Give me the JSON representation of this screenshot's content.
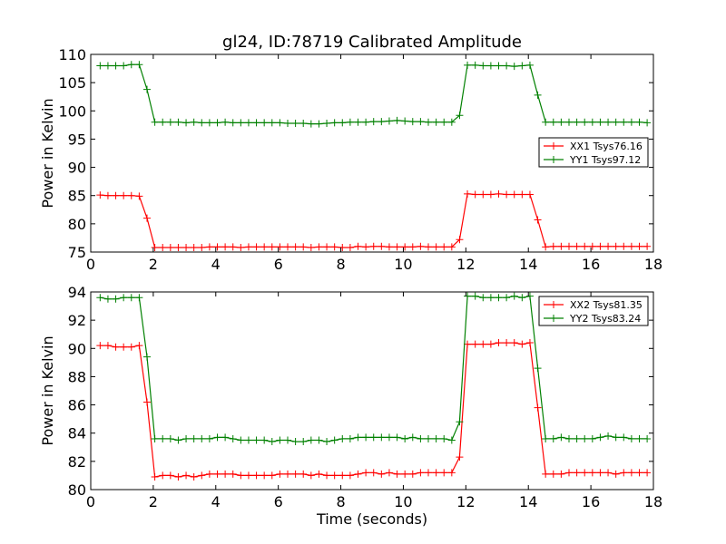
{
  "title": "gl24, ID:78719 Calibrated Amplitude",
  "chart_data": [
    {
      "type": "line",
      "xlabel": "",
      "ylabel": "Power in Kelvin",
      "xlim": [
        0,
        18
      ],
      "ylim": [
        75,
        110
      ],
      "xticks": [
        "0",
        "2",
        "4",
        "6",
        "8",
        "10",
        "12",
        "14",
        "16",
        "18"
      ],
      "yticks": [
        "75",
        "80",
        "85",
        "90",
        "95",
        "100",
        "105",
        "110"
      ],
      "legend_position": "center-right",
      "series": [
        {
          "name": "XX1 Tsys76.16",
          "color": "#ff0000",
          "x": [
            0.3,
            0.55,
            0.8,
            1.05,
            1.3,
            1.55,
            1.8,
            2.05,
            2.3,
            2.55,
            2.8,
            3.05,
            3.3,
            3.55,
            3.8,
            4.05,
            4.3,
            4.55,
            4.8,
            5.05,
            5.3,
            5.55,
            5.8,
            6.05,
            6.3,
            6.55,
            6.8,
            7.05,
            7.3,
            7.55,
            7.8,
            8.05,
            8.3,
            8.55,
            8.8,
            9.05,
            9.3,
            9.55,
            9.8,
            10.05,
            10.3,
            10.55,
            10.8,
            11.05,
            11.3,
            11.55,
            11.8,
            12.05,
            12.3,
            12.55,
            12.8,
            13.05,
            13.3,
            13.55,
            13.8,
            14.05,
            14.3,
            14.55,
            14.8,
            15.05,
            15.3,
            15.55,
            15.8,
            16.05,
            16.3,
            16.55,
            16.8,
            17.05,
            17.3,
            17.55,
            17.8
          ],
          "values": [
            85.1,
            85.0,
            85.0,
            85.0,
            85.0,
            84.9,
            81.0,
            75.8,
            75.8,
            75.8,
            75.8,
            75.8,
            75.8,
            75.8,
            75.9,
            75.9,
            75.9,
            75.9,
            75.8,
            75.9,
            75.9,
            75.9,
            75.9,
            75.9,
            75.9,
            75.9,
            75.9,
            75.8,
            75.9,
            75.9,
            75.9,
            75.8,
            75.8,
            76.0,
            75.9,
            76.0,
            76.0,
            75.9,
            75.9,
            75.9,
            75.9,
            76.0,
            75.9,
            75.9,
            75.9,
            75.9,
            77.2,
            85.3,
            85.2,
            85.2,
            85.2,
            85.3,
            85.2,
            85.2,
            85.2,
            85.2,
            80.7,
            75.9,
            76.0,
            76.0,
            76.0,
            76.0,
            76.0,
            76.0,
            76.0,
            76.0,
            76.0,
            76.0,
            76.0,
            76.0,
            76.0
          ]
        },
        {
          "name": "YY1 Tsys97.12",
          "color": "#008000",
          "x": [
            0.3,
            0.55,
            0.8,
            1.05,
            1.3,
            1.55,
            1.8,
            2.05,
            2.3,
            2.55,
            2.8,
            3.05,
            3.3,
            3.55,
            3.8,
            4.05,
            4.3,
            4.55,
            4.8,
            5.05,
            5.3,
            5.55,
            5.8,
            6.05,
            6.3,
            6.55,
            6.8,
            7.05,
            7.3,
            7.55,
            7.8,
            8.05,
            8.3,
            8.55,
            8.8,
            9.05,
            9.3,
            9.55,
            9.8,
            10.05,
            10.3,
            10.55,
            10.8,
            11.05,
            11.3,
            11.55,
            11.8,
            12.05,
            12.3,
            12.55,
            12.8,
            13.05,
            13.3,
            13.55,
            13.8,
            14.05,
            14.3,
            14.55,
            14.8,
            15.05,
            15.3,
            15.55,
            15.8,
            16.05,
            16.3,
            16.55,
            16.8,
            17.05,
            17.3,
            17.55,
            17.8
          ],
          "values": [
            108.0,
            108.0,
            108.0,
            108.0,
            108.2,
            108.2,
            103.8,
            98.0,
            98.0,
            98.0,
            98.0,
            97.9,
            98.0,
            97.9,
            97.9,
            97.9,
            98.0,
            97.9,
            97.9,
            97.9,
            97.9,
            97.9,
            97.9,
            97.9,
            97.8,
            97.8,
            97.8,
            97.7,
            97.7,
            97.8,
            97.9,
            97.9,
            98.0,
            98.0,
            98.0,
            98.1,
            98.1,
            98.2,
            98.3,
            98.2,
            98.1,
            98.1,
            98.0,
            98.0,
            98.0,
            98.0,
            99.2,
            108.1,
            108.1,
            108.0,
            108.0,
            108.0,
            108.0,
            107.9,
            108.0,
            108.1,
            102.8,
            98.0,
            98.0,
            98.0,
            98.0,
            98.0,
            98.0,
            98.0,
            98.0,
            98.0,
            98.0,
            98.0,
            98.0,
            98.0,
            97.9
          ]
        }
      ]
    },
    {
      "type": "line",
      "xlabel": "Time (seconds)",
      "ylabel": "Power in Kelvin",
      "xlim": [
        0,
        18
      ],
      "ylim": [
        80,
        94
      ],
      "xticks": [
        "0",
        "2",
        "4",
        "6",
        "8",
        "10",
        "12",
        "14",
        "16",
        "18"
      ],
      "yticks": [
        "80",
        "82",
        "84",
        "86",
        "88",
        "90",
        "92",
        "94"
      ],
      "legend_position": "top-right",
      "series": [
        {
          "name": "XX2 Tsys81.35",
          "color": "#ff0000",
          "x": [
            0.3,
            0.55,
            0.8,
            1.05,
            1.3,
            1.55,
            1.8,
            2.05,
            2.3,
            2.55,
            2.8,
            3.05,
            3.3,
            3.55,
            3.8,
            4.05,
            4.3,
            4.55,
            4.8,
            5.05,
            5.3,
            5.55,
            5.8,
            6.05,
            6.3,
            6.55,
            6.8,
            7.05,
            7.3,
            7.55,
            7.8,
            8.05,
            8.3,
            8.55,
            8.8,
            9.05,
            9.3,
            9.55,
            9.8,
            10.05,
            10.3,
            10.55,
            10.8,
            11.05,
            11.3,
            11.55,
            11.8,
            12.05,
            12.3,
            12.55,
            12.8,
            13.05,
            13.3,
            13.55,
            13.8,
            14.05,
            14.3,
            14.55,
            14.8,
            15.05,
            15.3,
            15.55,
            15.8,
            16.05,
            16.3,
            16.55,
            16.8,
            17.05,
            17.3,
            17.55,
            17.8
          ],
          "values": [
            90.2,
            90.2,
            90.1,
            90.1,
            90.1,
            90.2,
            86.2,
            80.9,
            81.0,
            81.0,
            80.9,
            81.0,
            80.9,
            81.0,
            81.1,
            81.1,
            81.1,
            81.1,
            81.0,
            81.0,
            81.0,
            81.0,
            81.0,
            81.1,
            81.1,
            81.1,
            81.1,
            81.0,
            81.1,
            81.0,
            81.0,
            81.0,
            81.0,
            81.1,
            81.2,
            81.2,
            81.1,
            81.2,
            81.1,
            81.1,
            81.1,
            81.2,
            81.2,
            81.2,
            81.2,
            81.2,
            82.3,
            90.3,
            90.3,
            90.3,
            90.3,
            90.4,
            90.4,
            90.4,
            90.3,
            90.4,
            85.8,
            81.1,
            81.1,
            81.1,
            81.2,
            81.2,
            81.2,
            81.2,
            81.2,
            81.2,
            81.1,
            81.2,
            81.2,
            81.2,
            81.2
          ]
        },
        {
          "name": "YY2 Tsys83.24",
          "color": "#008000",
          "x": [
            0.3,
            0.55,
            0.8,
            1.05,
            1.3,
            1.55,
            1.8,
            2.05,
            2.3,
            2.55,
            2.8,
            3.05,
            3.3,
            3.55,
            3.8,
            4.05,
            4.3,
            4.55,
            4.8,
            5.05,
            5.3,
            5.55,
            5.8,
            6.05,
            6.3,
            6.55,
            6.8,
            7.05,
            7.3,
            7.55,
            7.8,
            8.05,
            8.3,
            8.55,
            8.8,
            9.05,
            9.3,
            9.55,
            9.8,
            10.05,
            10.3,
            10.55,
            10.8,
            11.05,
            11.3,
            11.55,
            11.8,
            12.05,
            12.3,
            12.55,
            12.8,
            13.05,
            13.3,
            13.55,
            13.8,
            14.05,
            14.3,
            14.55,
            14.8,
            15.05,
            15.3,
            15.55,
            15.8,
            16.05,
            16.3,
            16.55,
            16.8,
            17.05,
            17.3,
            17.55,
            17.8
          ],
          "values": [
            93.6,
            93.5,
            93.5,
            93.6,
            93.6,
            93.6,
            89.4,
            83.6,
            83.6,
            83.6,
            83.5,
            83.6,
            83.6,
            83.6,
            83.6,
            83.7,
            83.7,
            83.6,
            83.5,
            83.5,
            83.5,
            83.5,
            83.4,
            83.5,
            83.5,
            83.4,
            83.4,
            83.5,
            83.5,
            83.4,
            83.5,
            83.6,
            83.6,
            83.7,
            83.7,
            83.7,
            83.7,
            83.7,
            83.7,
            83.6,
            83.7,
            83.6,
            83.6,
            83.6,
            83.6,
            83.5,
            84.8,
            93.7,
            93.7,
            93.6,
            93.6,
            93.6,
            93.6,
            93.7,
            93.6,
            93.7,
            88.6,
            83.6,
            83.6,
            83.7,
            83.6,
            83.6,
            83.6,
            83.6,
            83.7,
            83.8,
            83.7,
            83.7,
            83.6,
            83.6,
            83.6
          ]
        }
      ]
    }
  ]
}
